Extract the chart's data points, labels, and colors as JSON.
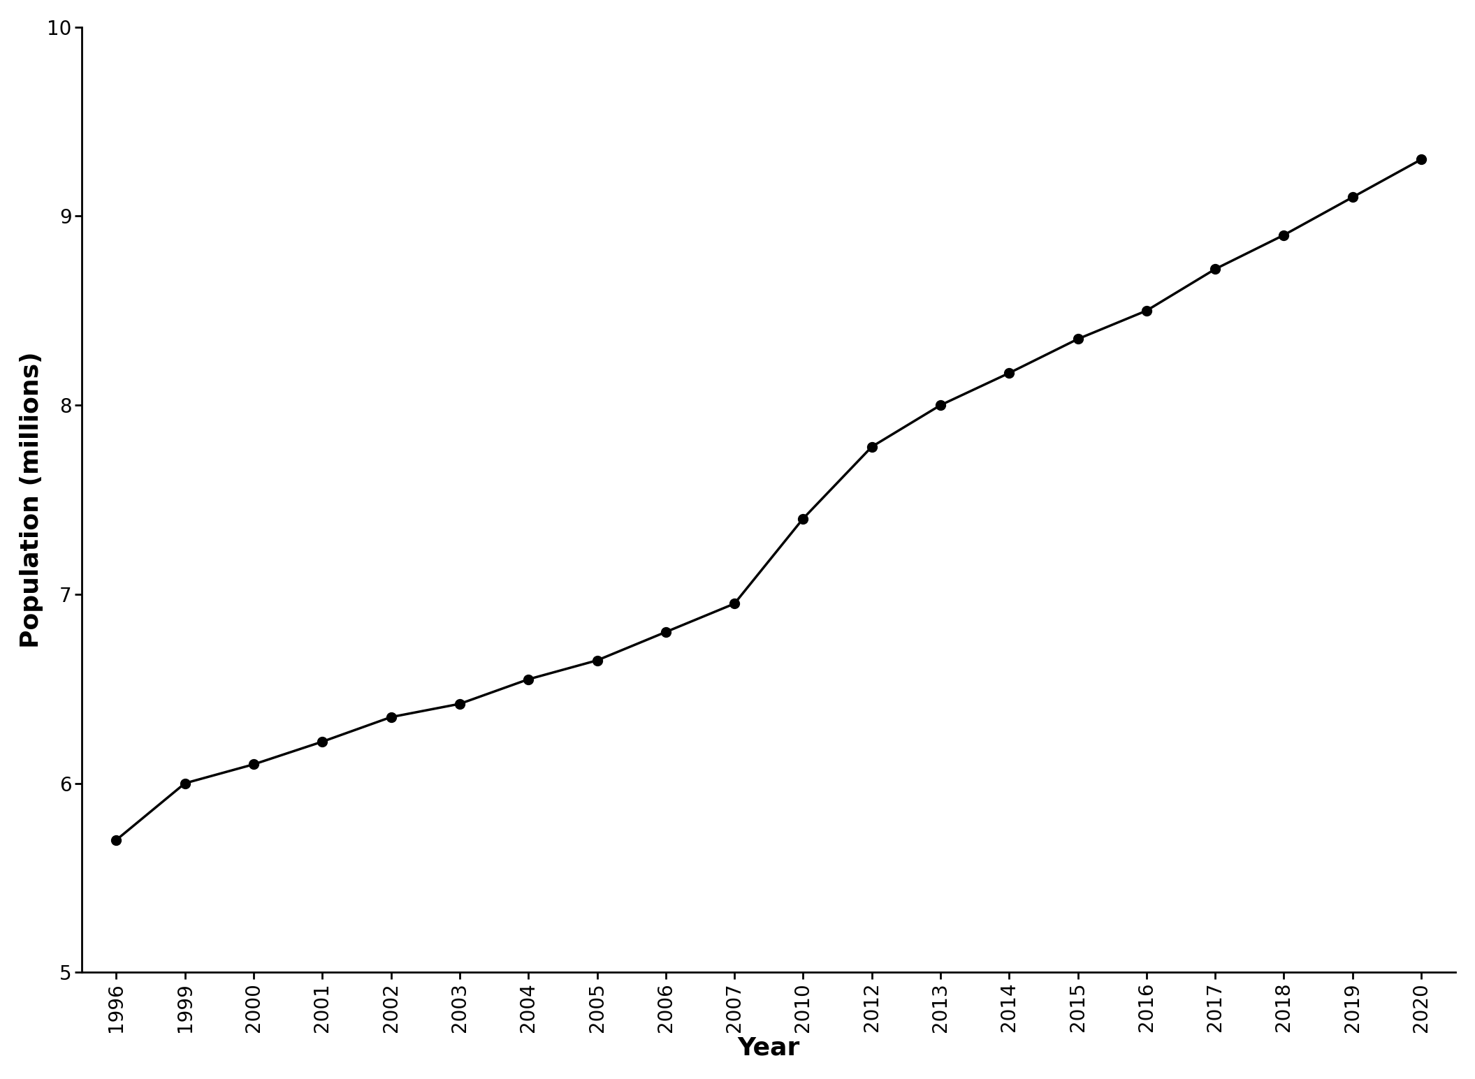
{
  "years": [
    1996,
    1999,
    2000,
    2001,
    2002,
    2003,
    2004,
    2005,
    2006,
    2007,
    2010,
    2012,
    2013,
    2014,
    2015,
    2016,
    2017,
    2018,
    2019,
    2020
  ],
  "population": [
    5.7,
    6.0,
    6.1,
    6.22,
    6.35,
    6.42,
    6.55,
    6.65,
    6.8,
    6.95,
    7.4,
    7.78,
    8.0,
    8.17,
    8.35,
    8.5,
    8.72,
    8.9,
    9.1,
    9.3
  ],
  "xlabel": "Year",
  "ylabel": "Population (millions)",
  "ylim": [
    5,
    10
  ],
  "yticks": [
    5,
    6,
    7,
    8,
    9,
    10
  ],
  "line_color": "#000000",
  "marker": "o",
  "marker_size": 10,
  "line_width": 2.5,
  "background_color": "#ffffff",
  "tick_label_fontsize": 20,
  "axis_label_fontsize": 26
}
